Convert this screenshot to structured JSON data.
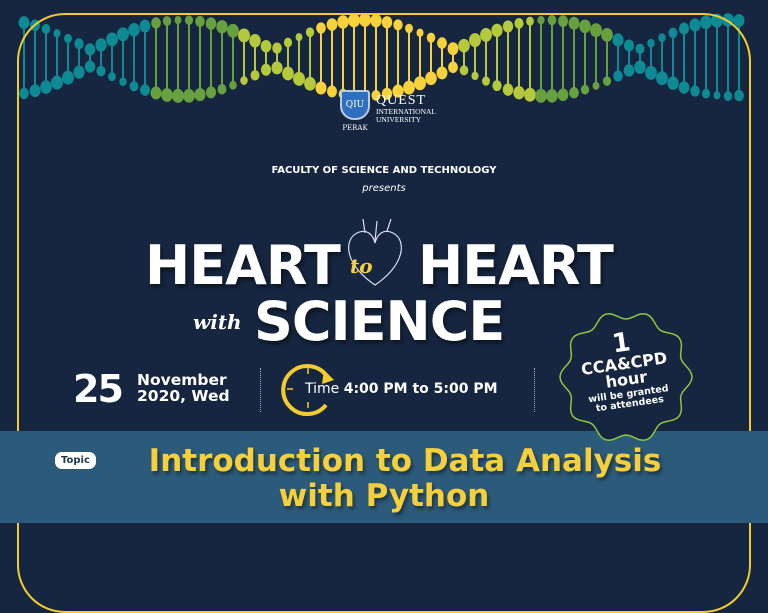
{
  "colors": {
    "background": "#162640",
    "frame": "#f2cc2f",
    "band": "#2c5a7a",
    "title": "#f5d03b",
    "badge_border": "#8dc63f",
    "dna": [
      "#0e8a94",
      "#67a03f",
      "#b5c93c",
      "#f7d23a"
    ]
  },
  "logo": {
    "monogram": "QIU",
    "name_line1": "QUEST",
    "name_line2": "INTERNATIONAL",
    "name_line3": "UNIVERSITY",
    "campus": "PERAK"
  },
  "faculty": "FACULTY OF SCIENCE AND TECHNOLOGY",
  "presents": "presents",
  "headline": {
    "heart1": "HEART",
    "to": "to",
    "heart2": "HEART",
    "with": "with",
    "science": "SCIENCE"
  },
  "date": {
    "day": "25",
    "month": "November",
    "year_weekday": "2020, Wed"
  },
  "time": {
    "label": "Time",
    "value": "4:00 PM to 5:00 PM"
  },
  "badge": {
    "number": "1",
    "line1": "CCA&CPD",
    "line2": "hour",
    "line3": "will be granted",
    "line4": "to attendees"
  },
  "topic": {
    "tag": "Topic",
    "line1": "Introduction to Data Analysis",
    "line2": "with Python"
  },
  "icons": {
    "heart": "anatomical-heart-icon",
    "clock": "clock-icon",
    "dna": "dna-strand"
  }
}
